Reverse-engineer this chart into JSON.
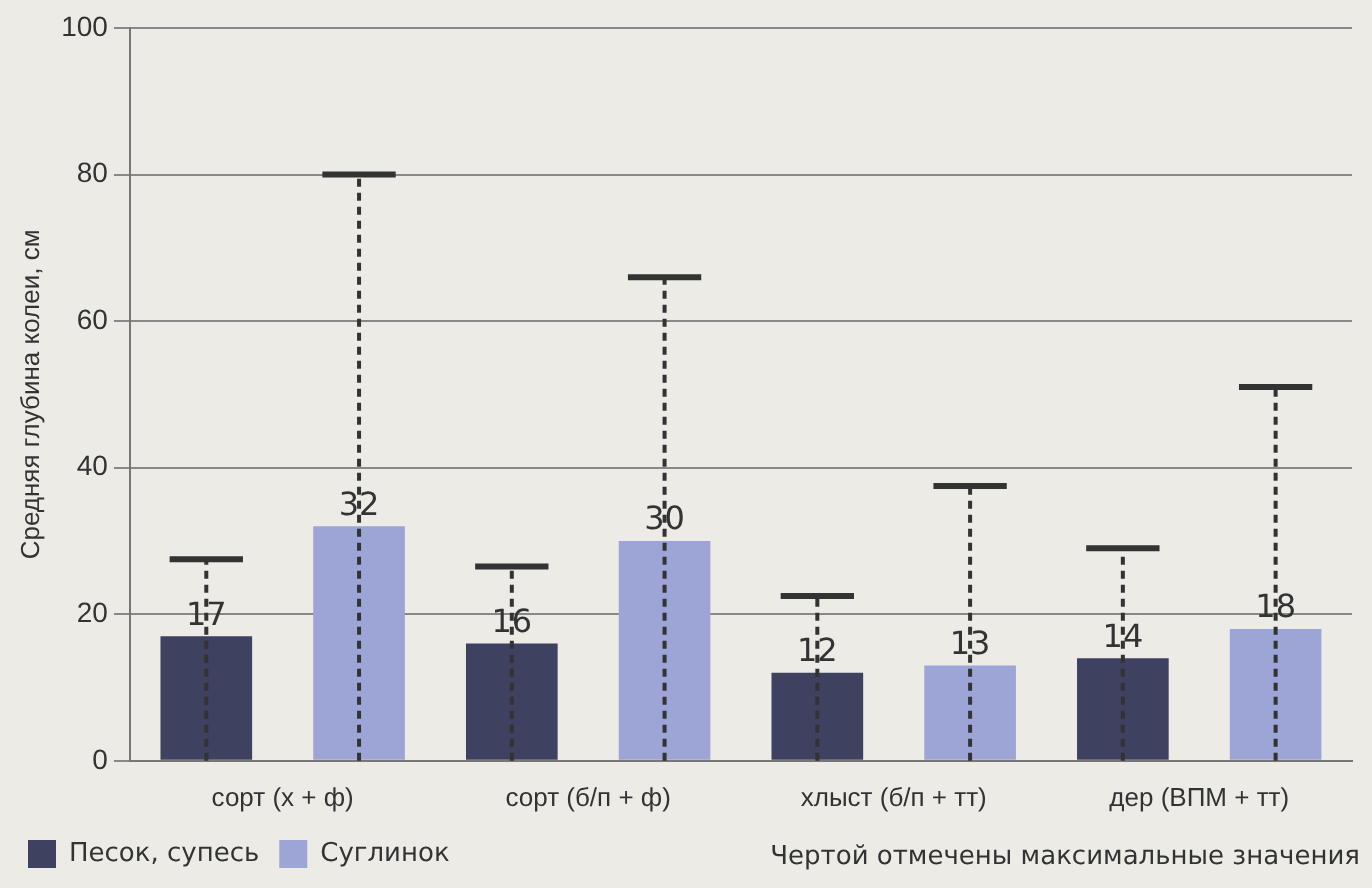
{
  "chart_data": {
    "type": "bar",
    "ylabel": "Средняя глубина колеи, см",
    "categories": [
      "сорт (х + ф)",
      "сорт (б/п + ф)",
      "хлыст (б/п + тт)",
      "дер (ВПМ + тт)"
    ],
    "series": [
      {
        "name": "Песок, супесь",
        "color": "#3e4160",
        "values": [
          17,
          16,
          12,
          14
        ],
        "errors": [
          [
            0,
            27.5
          ],
          [
            0,
            26.5
          ],
          [
            0,
            22.5
          ],
          [
            0,
            29
          ]
        ]
      },
      {
        "name": "Суглинок",
        "color": "#9da5d6",
        "values": [
          32,
          30,
          13,
          18
        ],
        "errors": [
          [
            0,
            80
          ],
          [
            0,
            66
          ],
          [
            0,
            37.5
          ],
          [
            0,
            51
          ]
        ]
      }
    ],
    "ylim": [
      0,
      100
    ],
    "yticks": [
      0,
      20,
      40,
      60,
      80,
      100
    ],
    "grid": "y",
    "legend": "bottom left",
    "data_labels": true,
    "line_style": "dashed",
    "annotations": [
      "Чертой отмечены максимальные значения"
    ]
  }
}
